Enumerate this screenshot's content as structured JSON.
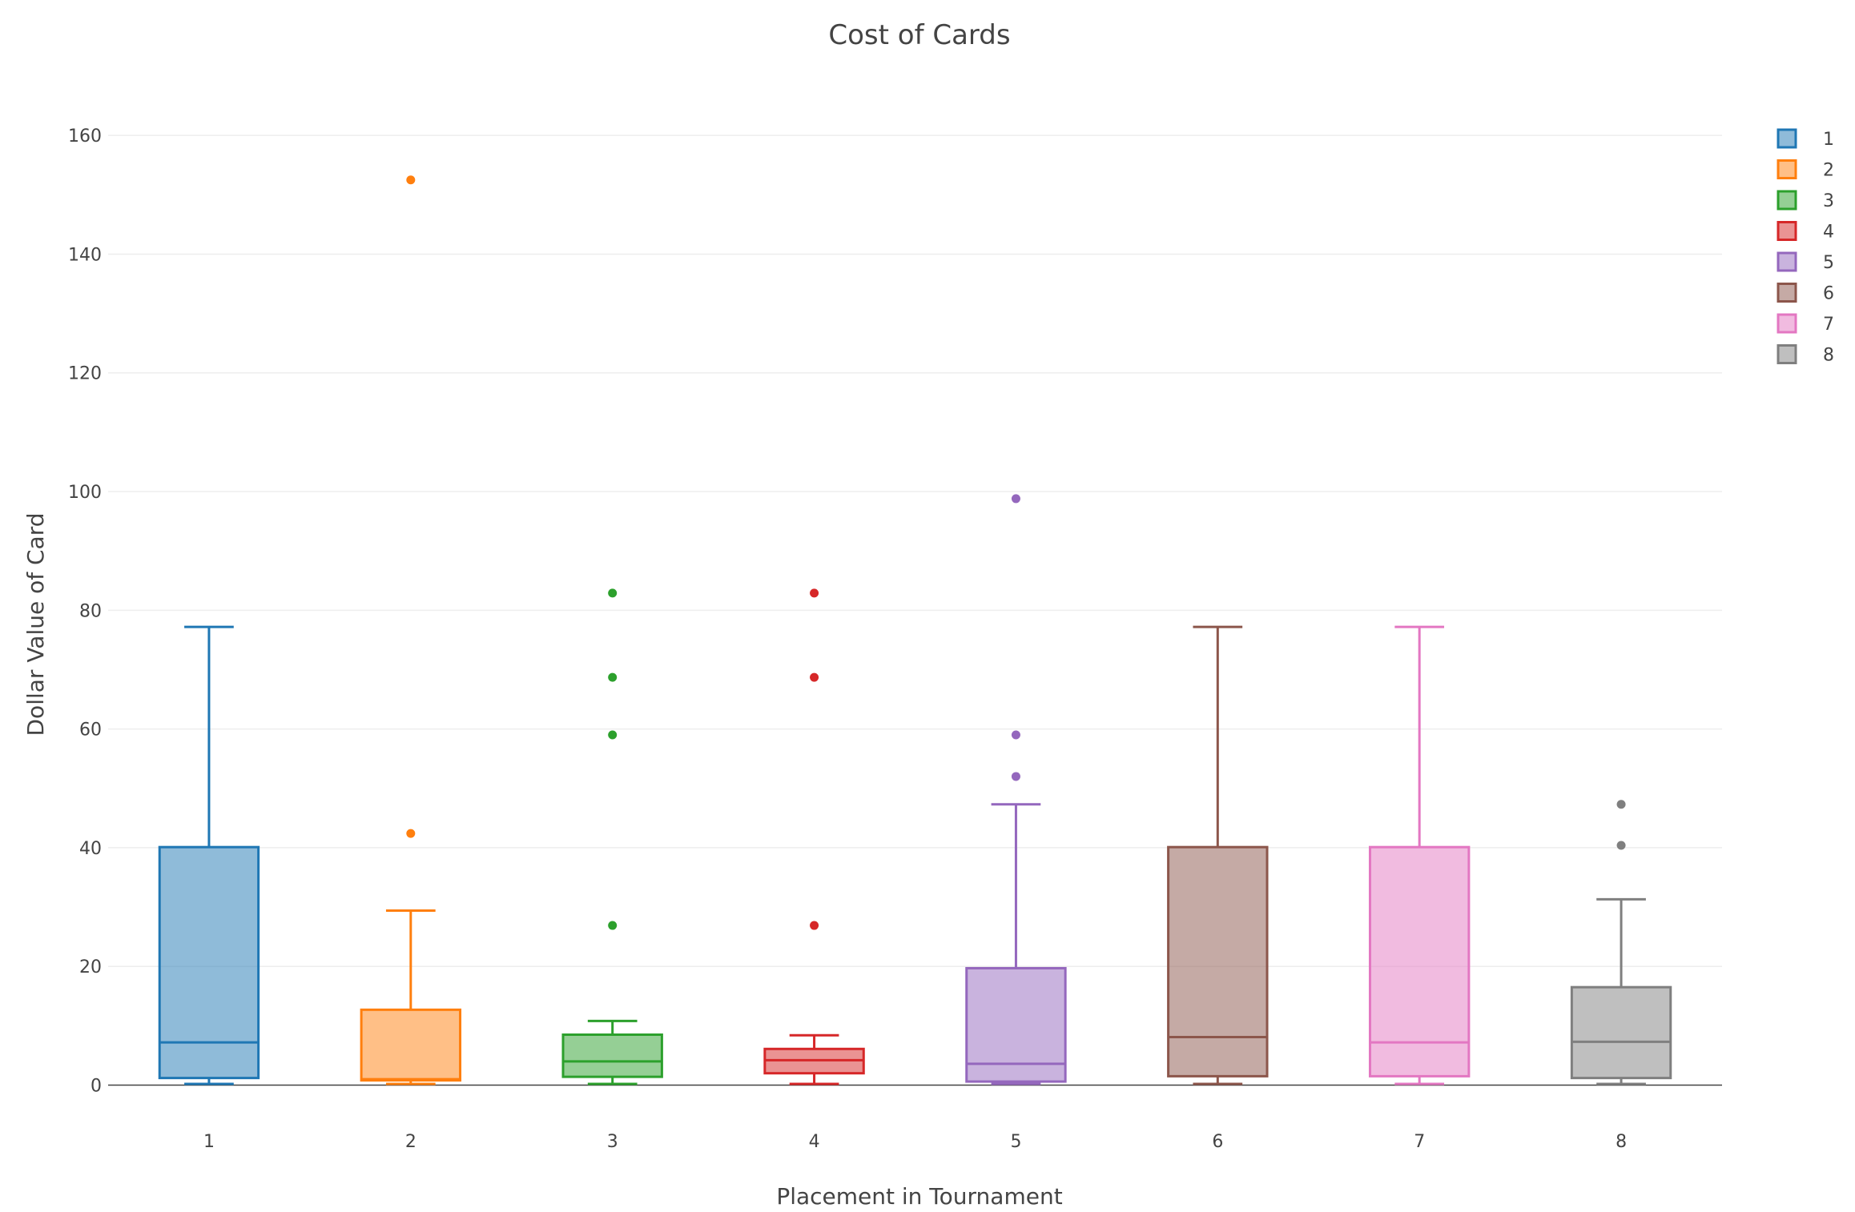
{
  "chart_data": {
    "type": "box",
    "title": "Cost of Cards",
    "xlabel": "Placement in Tournament",
    "ylabel": "Dollar Value of Card",
    "ylim": [
      -6,
      170
    ],
    "yticks": [
      0,
      20,
      40,
      60,
      80,
      100,
      120,
      140,
      160
    ],
    "grid": true,
    "legend_position": "top-right",
    "categories": [
      "1",
      "2",
      "3",
      "4",
      "5",
      "6",
      "7",
      "8"
    ],
    "series": [
      {
        "name": "1",
        "color": "#1f77b4",
        "lower_whisker": 0.2,
        "q1": 1.2,
        "median": 7.2,
        "q3": 40.1,
        "upper_whisker": 77.2,
        "outliers": []
      },
      {
        "name": "2",
        "color": "#ff7f0e",
        "lower_whisker": 0.2,
        "q1": 0.8,
        "median": 1.0,
        "q3": 12.7,
        "upper_whisker": 29.4,
        "outliers": [
          42.4,
          152.5
        ]
      },
      {
        "name": "3",
        "color": "#2ca02c",
        "lower_whisker": 0.2,
        "q1": 1.4,
        "median": 4.0,
        "q3": 8.5,
        "upper_whisker": 10.8,
        "outliers": [
          26.9,
          59.0,
          68.7,
          82.9
        ]
      },
      {
        "name": "4",
        "color": "#d62728",
        "lower_whisker": 0.2,
        "q1": 2.0,
        "median": 4.2,
        "q3": 6.1,
        "upper_whisker": 8.4,
        "outliers": [
          26.9,
          68.7,
          82.9
        ]
      },
      {
        "name": "5",
        "color": "#9467bd",
        "lower_whisker": 0.2,
        "q1": 0.6,
        "median": 3.6,
        "q3": 19.7,
        "upper_whisker": 47.3,
        "outliers": [
          52.0,
          59.0,
          98.8
        ]
      },
      {
        "name": "6",
        "color": "#8c564b",
        "lower_whisker": 0.2,
        "q1": 1.5,
        "median": 8.1,
        "q3": 40.1,
        "upper_whisker": 77.2,
        "outliers": []
      },
      {
        "name": "7",
        "color": "#e377c2",
        "lower_whisker": 0.2,
        "q1": 1.5,
        "median": 7.2,
        "q3": 40.1,
        "upper_whisker": 77.2,
        "outliers": []
      },
      {
        "name": "8",
        "color": "#7f7f7f",
        "lower_whisker": 0.2,
        "q1": 1.2,
        "median": 7.3,
        "q3": 16.5,
        "upper_whisker": 31.3,
        "outliers": [
          40.4,
          47.3
        ]
      }
    ]
  }
}
